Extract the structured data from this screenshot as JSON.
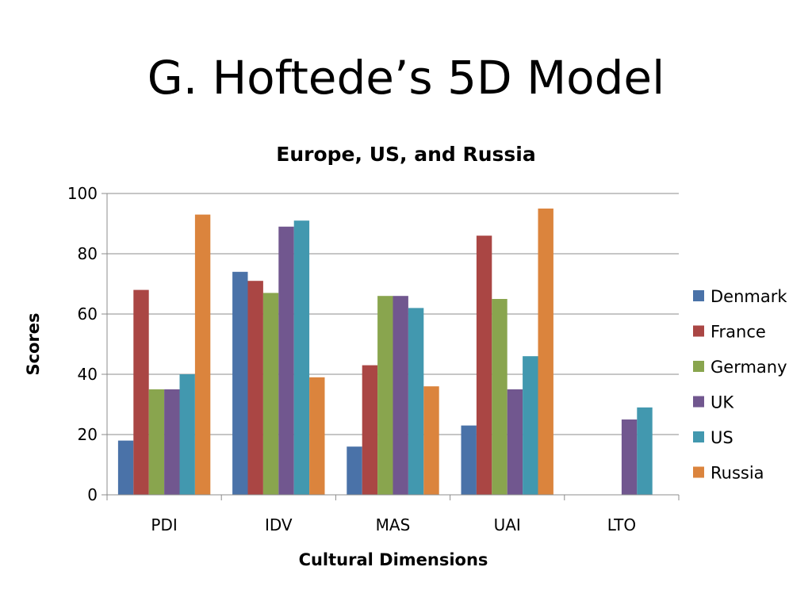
{
  "slide": {
    "title": "G. Hoftede’s 5D Model"
  },
  "chart_data": {
    "type": "bar",
    "title": "Europe, US, and Russia",
    "xlabel": "Cultural Dimensions",
    "ylabel": "Scores",
    "categories": [
      "PDI",
      "IDV",
      "MAS",
      "UAI",
      "LTO"
    ],
    "ylim": [
      0,
      100
    ],
    "yticks": [
      0,
      20,
      40,
      60,
      80,
      100
    ],
    "grid": true,
    "legend_position": "right",
    "series": [
      {
        "name": "Denmark",
        "color": "#4A72A8",
        "values": [
          18,
          74,
          16,
          23,
          null
        ]
      },
      {
        "name": "France",
        "color": "#AA4644",
        "values": [
          68,
          71,
          43,
          86,
          null
        ]
      },
      {
        "name": "Germany",
        "color": "#89A54E",
        "values": [
          35,
          67,
          66,
          65,
          null
        ]
      },
      {
        "name": "UK",
        "color": "#71578F",
        "values": [
          35,
          89,
          66,
          35,
          25
        ]
      },
      {
        "name": "US",
        "color": "#4298AF",
        "values": [
          40,
          91,
          62,
          46,
          29
        ]
      },
      {
        "name": "Russia",
        "color": "#DB843D",
        "values": [
          93,
          39,
          36,
          95,
          null
        ]
      }
    ]
  }
}
